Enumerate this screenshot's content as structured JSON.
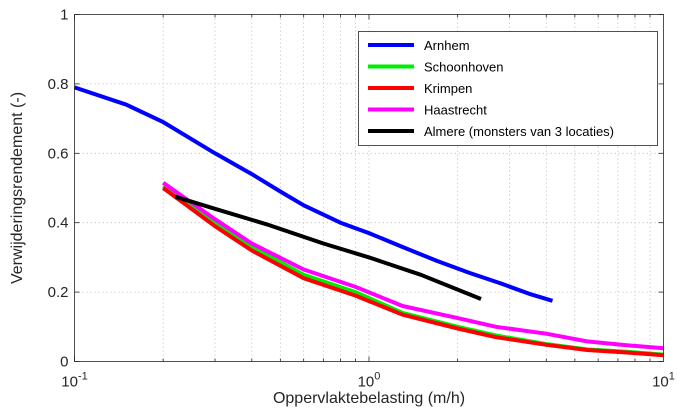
{
  "chart_data": {
    "type": "line",
    "title": "",
    "xlabel": "Oppervlaktebelasting (m/h)",
    "ylabel": "Verwijderingsrendement (-)",
    "xscale": "log",
    "xlim": [
      0.1,
      10
    ],
    "ylim": [
      0,
      1
    ],
    "grid": true,
    "legend_position": "top-right",
    "x_ticks": [
      0.1,
      1,
      10
    ],
    "x_tick_labels": [
      {
        "base": "10",
        "exp": "-1"
      },
      {
        "base": "10",
        "exp": "0"
      },
      {
        "base": "10",
        "exp": "1"
      }
    ],
    "y_ticks": [
      0,
      0.2,
      0.4,
      0.6,
      0.8,
      1
    ],
    "y_tick_labels": [
      "0",
      "0.2",
      "0.4",
      "0.6",
      "0.8",
      "1"
    ],
    "series": [
      {
        "name": "Arnhem",
        "color": "#0000ff",
        "x": [
          0.1,
          0.15,
          0.2,
          0.3,
          0.4,
          0.5,
          0.6,
          0.8,
          1.0,
          1.3,
          1.7,
          2.2,
          2.8,
          3.5,
          4.2
        ],
        "y": [
          0.79,
          0.74,
          0.69,
          0.6,
          0.54,
          0.49,
          0.45,
          0.4,
          0.37,
          0.33,
          0.29,
          0.255,
          0.225,
          0.195,
          0.175
        ]
      },
      {
        "name": "Schoonhoven",
        "color": "#00ee00",
        "x": [
          0.2,
          0.3,
          0.4,
          0.6,
          0.9,
          1.3,
          2.0,
          2.7,
          4.0,
          5.5,
          7.5,
          10
        ],
        "y": [
          0.505,
          0.4,
          0.33,
          0.25,
          0.2,
          0.14,
          0.1,
          0.075,
          0.05,
          0.035,
          0.028,
          0.02
        ]
      },
      {
        "name": "Krimpen",
        "color": "#ff0000",
        "x": [
          0.2,
          0.3,
          0.4,
          0.6,
          0.9,
          1.3,
          2.0,
          2.7,
          4.0,
          5.5,
          7.5,
          10
        ],
        "y": [
          0.5,
          0.39,
          0.32,
          0.24,
          0.19,
          0.135,
          0.095,
          0.07,
          0.048,
          0.033,
          0.026,
          0.018
        ]
      },
      {
        "name": "Haastrecht",
        "color": "#ff00ff",
        "x": [
          0.2,
          0.3,
          0.4,
          0.6,
          0.9,
          1.3,
          2.0,
          2.7,
          4.0,
          5.5,
          7.5,
          10
        ],
        "y": [
          0.515,
          0.41,
          0.34,
          0.265,
          0.215,
          0.16,
          0.125,
          0.1,
          0.08,
          0.058,
          0.047,
          0.038
        ]
      },
      {
        "name": "Almere (monsters van 3 locaties)",
        "color": "#000000",
        "x": [
          0.22,
          0.3,
          0.45,
          0.7,
          1.0,
          1.5,
          2.4
        ],
        "y": [
          0.475,
          0.44,
          0.395,
          0.34,
          0.3,
          0.25,
          0.18
        ]
      }
    ]
  }
}
